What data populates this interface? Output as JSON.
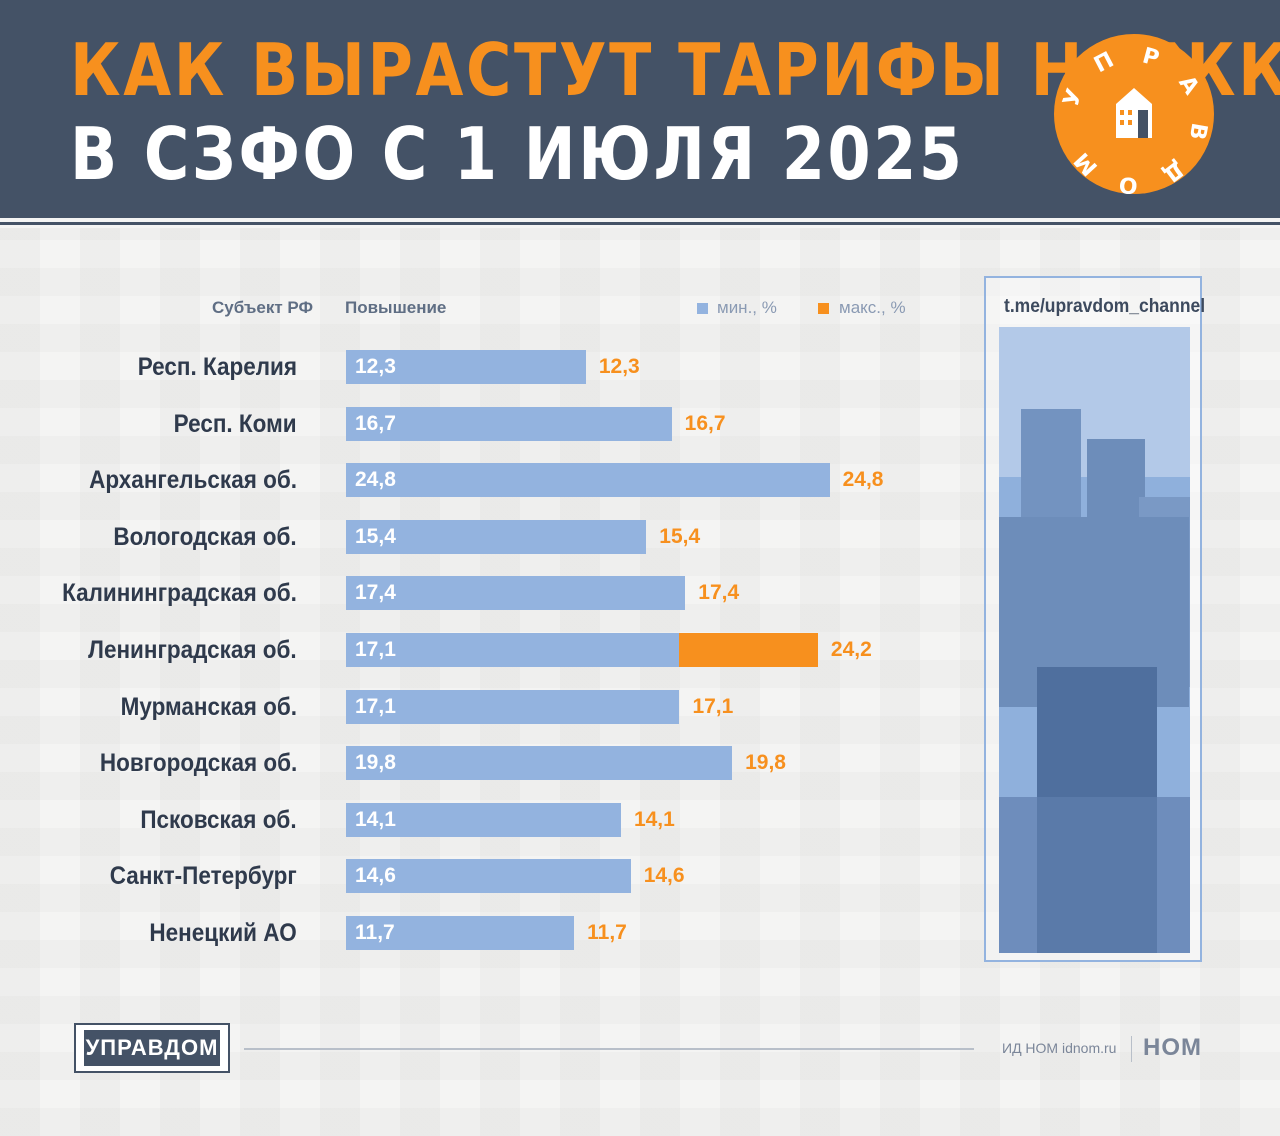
{
  "header": {
    "title_line1": "КАК ВЫРАСТУТ ТАРИФЫ НА ЖКУ",
    "title_line2": "В СЗФО С 1 ИЮЛЯ 2025",
    "logo_text": "УПРАВДОМ"
  },
  "columns": {
    "region_header": "Субъект РФ",
    "increase_header": "Повышение"
  },
  "legend": {
    "min_label": "мин., %",
    "max_label": "макс., %"
  },
  "side_panel": {
    "link": "t.me/upravdom_channel"
  },
  "footer": {
    "brand": "УПРАВДОМ",
    "credit": "ИД НОМ idnom.ru",
    "logo": "НОМ"
  },
  "colors": {
    "header_bg": "#445266",
    "accent_orange": "#f7901e",
    "bar_blue": "#93b3df",
    "text_dark": "#2f3a4c"
  },
  "chart_data": {
    "type": "bar",
    "orientation": "horizontal",
    "title": "КАК ВЫРАСТУТ ТАРИФЫ НА ЖКУ В СЗФО С 1 ИЮЛЯ 2025",
    "categories": [
      "Респ. Карелия",
      "Респ. Коми",
      "Архангельская об.",
      "Вологодская об.",
      "Калининградская об.",
      "Ленинградская об.",
      "Мурманская об.",
      "Новгородская об.",
      "Псковская об.",
      "Санкт-Петербург",
      "Ненецкий АО"
    ],
    "series": [
      {
        "name": "мин., %",
        "values": [
          12.3,
          16.7,
          24.8,
          15.4,
          17.4,
          17.1,
          17.1,
          19.8,
          14.1,
          14.6,
          11.7
        ],
        "labels": [
          "12,3",
          "16,7",
          "24,8",
          "15,4",
          "17,4",
          "17,1",
          "17,1",
          "19,8",
          "14,1",
          "14,6",
          "11,7"
        ]
      },
      {
        "name": "макс., %",
        "values": [
          12.3,
          16.7,
          24.8,
          15.4,
          17.4,
          24.2,
          17.1,
          19.8,
          14.1,
          14.6,
          11.7
        ],
        "labels": [
          "12,3",
          "16,7",
          "24,8",
          "15,4",
          "17,4",
          "24,2",
          "17,1",
          "19,8",
          "14,1",
          "14,6",
          "11,7"
        ]
      }
    ],
    "xlim": [
      0,
      24.8
    ],
    "grid": false,
    "legend": "top-right"
  }
}
